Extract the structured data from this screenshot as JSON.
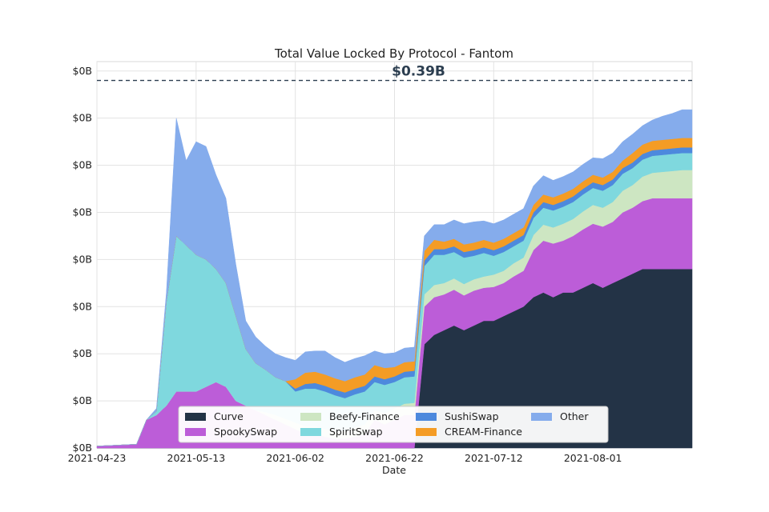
{
  "chart_data": {
    "type": "area",
    "stacked": true,
    "title": "Total Value Locked By Protocol - Fantom",
    "xlabel": "Date",
    "ylabel": "",
    "y_tick_labels": [
      "$0B",
      "$0B",
      "$0B",
      "$0B",
      "$0B",
      "$0B",
      "$0B",
      "$0B",
      "$0B"
    ],
    "ylim": [
      0,
      0.41
    ],
    "xlim": [
      "2021-04-23",
      "2021-08-21"
    ],
    "x_tick_labels": [
      "2021-04-23",
      "2021-05-13",
      "2021-06-02",
      "2021-06-22",
      "2021-07-12",
      "2021-08-01"
    ],
    "annotation": {
      "text": "$0.39B",
      "value": 0.39,
      "line_style": "dashed"
    },
    "grid": true,
    "legend_position": "bottom-center",
    "x": [
      "2021-04-23",
      "2021-04-27",
      "2021-05-01",
      "2021-05-03",
      "2021-05-05",
      "2021-05-07",
      "2021-05-09",
      "2021-05-11",
      "2021-05-13",
      "2021-05-15",
      "2021-05-17",
      "2021-05-19",
      "2021-05-21",
      "2021-05-23",
      "2021-05-25",
      "2021-05-27",
      "2021-05-29",
      "2021-05-31",
      "2021-06-02",
      "2021-06-04",
      "2021-06-06",
      "2021-06-08",
      "2021-06-10",
      "2021-06-12",
      "2021-06-14",
      "2021-06-16",
      "2021-06-18",
      "2021-06-20",
      "2021-06-22",
      "2021-06-24",
      "2021-06-26",
      "2021-06-28",
      "2021-06-30",
      "2021-07-02",
      "2021-07-04",
      "2021-07-06",
      "2021-07-08",
      "2021-07-10",
      "2021-07-12",
      "2021-07-14",
      "2021-07-16",
      "2021-07-18",
      "2021-07-20",
      "2021-07-22",
      "2021-07-24",
      "2021-07-26",
      "2021-07-28",
      "2021-07-30",
      "2021-08-01",
      "2021-08-03",
      "2021-08-05",
      "2021-08-07",
      "2021-08-09",
      "2021-08-11",
      "2021-08-13",
      "2021-08-15",
      "2021-08-17",
      "2021-08-19",
      "2021-08-21"
    ],
    "series": [
      {
        "name": "Curve",
        "color": "#233346",
        "values": [
          0,
          0,
          0,
          0,
          0,
          0,
          0,
          0,
          0,
          0,
          0,
          0,
          0,
          0,
          0,
          0,
          0,
          0,
          0,
          0,
          0,
          0,
          0,
          0,
          0,
          0,
          0,
          0,
          0,
          0,
          0,
          0.11,
          0.12,
          0.125,
          0.13,
          0.125,
          0.13,
          0.135,
          0.135,
          0.14,
          0.145,
          0.15,
          0.16,
          0.165,
          0.16,
          0.165,
          0.165,
          0.17,
          0.175,
          0.17,
          0.175,
          0.18,
          0.185,
          0.19,
          0.19,
          0.19,
          0.19,
          0.19,
          0.19
        ]
      },
      {
        "name": "SpookySwap",
        "color": "#bc5dd8",
        "values": [
          0.002,
          0.003,
          0.004,
          0.03,
          0.035,
          0.045,
          0.06,
          0.06,
          0.06,
          0.065,
          0.07,
          0.065,
          0.05,
          0.045,
          0.04,
          0.035,
          0.03,
          0.025,
          0.02,
          0.015,
          0.015,
          0.012,
          0.01,
          0.01,
          0.012,
          0.015,
          0.03,
          0.025,
          0.03,
          0.035,
          0.035,
          0.04,
          0.04,
          0.038,
          0.038,
          0.037,
          0.037,
          0.035,
          0.036,
          0.035,
          0.037,
          0.038,
          0.05,
          0.055,
          0.057,
          0.055,
          0.06,
          0.062,
          0.063,
          0.065,
          0.065,
          0.07,
          0.07,
          0.072,
          0.075,
          0.075,
          0.075,
          0.075,
          0.075
        ]
      },
      {
        "name": "Beefy-Finance",
        "color": "#cde6c2",
        "values": [
          0,
          0,
          0,
          0,
          0,
          0,
          0,
          0,
          0,
          0,
          0,
          0,
          0,
          0,
          0,
          0.003,
          0.005,
          0.006,
          0.007,
          0.008,
          0.008,
          0.008,
          0.008,
          0.008,
          0.01,
          0.01,
          0.01,
          0.012,
          0.012,
          0.012,
          0.013,
          0.013,
          0.013,
          0.012,
          0.012,
          0.012,
          0.012,
          0.012,
          0.013,
          0.013,
          0.014,
          0.014,
          0.016,
          0.017,
          0.017,
          0.018,
          0.018,
          0.019,
          0.02,
          0.02,
          0.021,
          0.023,
          0.024,
          0.026,
          0.027,
          0.028,
          0.029,
          0.03,
          0.03
        ]
      },
      {
        "name": "SpiritSwap",
        "color": "#7fd8de",
        "values": [
          0,
          0,
          0,
          0,
          0.004,
          0.11,
          0.165,
          0.155,
          0.145,
          0.135,
          0.12,
          0.11,
          0.09,
          0.06,
          0.05,
          0.045,
          0.04,
          0.04,
          0.033,
          0.04,
          0.04,
          0.04,
          0.038,
          0.035,
          0.035,
          0.035,
          0.03,
          0.03,
          0.028,
          0.028,
          0.028,
          0.03,
          0.032,
          0.03,
          0.028,
          0.028,
          0.025,
          0.025,
          0.02,
          0.02,
          0.018,
          0.018,
          0.018,
          0.018,
          0.018,
          0.018,
          0.018,
          0.018,
          0.018,
          0.018,
          0.018,
          0.018,
          0.018,
          0.018,
          0.018,
          0.018,
          0.018,
          0.018,
          0.018
        ]
      },
      {
        "name": "SushiSwap",
        "color": "#4d89dd",
        "values": [
          0,
          0,
          0,
          0,
          0,
          0,
          0,
          0,
          0,
          0,
          0,
          0,
          0,
          0,
          0,
          0,
          0,
          0,
          0.003,
          0.005,
          0.006,
          0.006,
          0.006,
          0.006,
          0.006,
          0.006,
          0.006,
          0.006,
          0.006,
          0.006,
          0.006,
          0.006,
          0.006,
          0.006,
          0.006,
          0.006,
          0.006,
          0.006,
          0.006,
          0.006,
          0.006,
          0.006,
          0.006,
          0.006,
          0.006,
          0.006,
          0.006,
          0.006,
          0.006,
          0.006,
          0.006,
          0.006,
          0.006,
          0.006,
          0.006,
          0.006,
          0.006,
          0.006,
          0.006
        ]
      },
      {
        "name": "CREAM-Finance",
        "color": "#f49c25",
        "values": [
          0,
          0,
          0,
          0,
          0,
          0,
          0,
          0,
          0,
          0,
          0,
          0,
          0,
          0,
          0,
          0,
          0,
          0,
          0.01,
          0.012,
          0.012,
          0.012,
          0.012,
          0.012,
          0.012,
          0.012,
          0.012,
          0.012,
          0.01,
          0.01,
          0.01,
          0.01,
          0.01,
          0.008,
          0.008,
          0.008,
          0.008,
          0.008,
          0.008,
          0.008,
          0.008,
          0.008,
          0.008,
          0.008,
          0.008,
          0.008,
          0.008,
          0.008,
          0.008,
          0.008,
          0.008,
          0.008,
          0.01,
          0.01,
          0.01,
          0.01,
          0.01,
          0.01,
          0.01
        ]
      },
      {
        "name": "Other",
        "color": "#85acec",
        "values": [
          0,
          0,
          0,
          0,
          0.003,
          0.01,
          0.125,
          0.09,
          0.12,
          0.12,
          0.1,
          0.09,
          0.055,
          0.03,
          0.028,
          0.025,
          0.025,
          0.025,
          0.02,
          0.022,
          0.022,
          0.025,
          0.022,
          0.02,
          0.02,
          0.02,
          0.015,
          0.015,
          0.015,
          0.015,
          0.015,
          0.016,
          0.016,
          0.018,
          0.02,
          0.022,
          0.022,
          0.02,
          0.02,
          0.02,
          0.02,
          0.02,
          0.02,
          0.02,
          0.018,
          0.018,
          0.018,
          0.018,
          0.018,
          0.02,
          0.02,
          0.02,
          0.02,
          0.02,
          0.022,
          0.025,
          0.027,
          0.03,
          0.03
        ]
      }
    ]
  }
}
